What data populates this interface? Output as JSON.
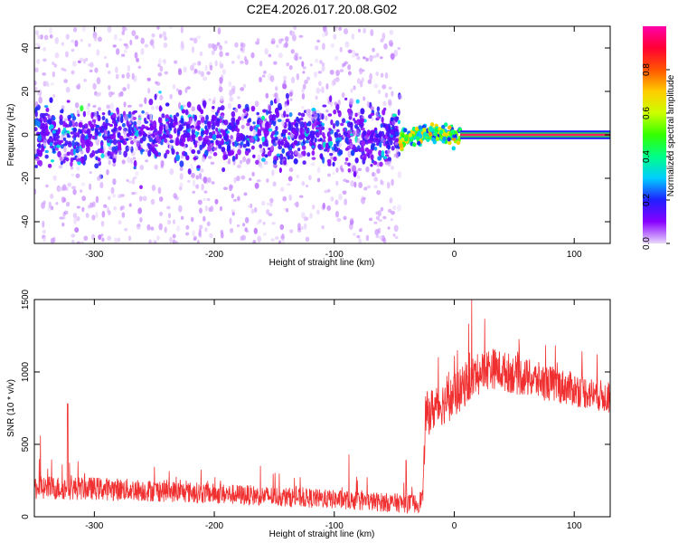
{
  "title": "C2E4.2026.017.20.08.G02",
  "colors": {
    "snr_line": "#f03030",
    "axis": "#000000",
    "background": "#ffffff"
  },
  "chart_data": [
    {
      "type": "heatmap",
      "xlabel": "Height of straight line (km)",
      "ylabel": "Frequency (Hz)",
      "xlim": [
        -350,
        130
      ],
      "ylim": [
        -50,
        50
      ],
      "x_ticks": [
        -300,
        -200,
        -100,
        0,
        100
      ],
      "y_ticks": [
        -40,
        -20,
        0,
        20,
        40
      ],
      "grid": false,
      "signal": [
        {
          "x_start": -350,
          "x_end": -45,
          "description_free": true,
          "freq_spread_hz": 50,
          "core_spread_hz": 8,
          "amplitude_range": [
            0.0,
            0.5
          ]
        },
        {
          "x_start": -45,
          "x_end": 5,
          "freq_spread_hz": 4,
          "amplitude_range": [
            0.3,
            0.9
          ]
        },
        {
          "x_start": 5,
          "x_end": 130,
          "freq_spread_hz": 1,
          "amplitude_range": [
            0.9,
            1.0
          ]
        }
      ],
      "colorbar": {
        "label": "Normalized spectral amplitude",
        "range": [
          0.0,
          1.0
        ],
        "ticks": [
          "0.0",
          "0.2",
          "0.4",
          "0.6",
          "0.8"
        ],
        "tick_values": [
          0.0,
          0.2,
          0.4,
          0.6,
          0.8
        ]
      }
    },
    {
      "type": "line",
      "xlabel": "Height of straight line (km)",
      "ylabel": "SNR (10 * v/v)",
      "xlim": [
        -350,
        130
      ],
      "ylim": [
        0,
        1500
      ],
      "x_ticks": [
        -300,
        -200,
        -100,
        0,
        100
      ],
      "y_ticks": [
        0,
        500,
        1000,
        1500
      ],
      "grid": false,
      "series": [
        {
          "points": [
            [
              -350,
              200
            ],
            [
              -300,
              195
            ],
            [
              -250,
              180
            ],
            [
              -200,
              160
            ],
            [
              -150,
              140
            ],
            [
              -100,
              120
            ],
            [
              -60,
              100
            ],
            [
              -30,
              90
            ],
            [
              -26,
              150
            ],
            [
              -24,
              700
            ],
            [
              -15,
              760
            ],
            [
              0,
              830
            ],
            [
              15,
              960
            ],
            [
              30,
              1030
            ],
            [
              60,
              960
            ],
            [
              90,
              900
            ],
            [
              130,
              820
            ]
          ],
          "noise_amplitude": [
            [
              -350,
              70
            ],
            [
              -200,
              60
            ],
            [
              -100,
              55
            ],
            [
              -26,
              55
            ],
            [
              -24,
              130
            ],
            [
              30,
              120
            ],
            [
              130,
              90
            ]
          ],
          "spikes": [
            [
              -345,
              560
            ],
            [
              -322,
              780
            ],
            [
              15,
              1500
            ],
            [
              3,
              1150
            ],
            [
              -40,
              390
            ],
            [
              -88,
              430
            ]
          ]
        }
      ]
    }
  ]
}
